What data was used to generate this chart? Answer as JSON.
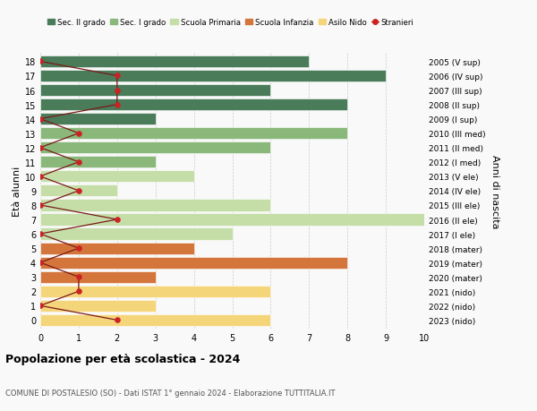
{
  "ages": [
    18,
    17,
    16,
    15,
    14,
    13,
    12,
    11,
    10,
    9,
    8,
    7,
    6,
    5,
    4,
    3,
    2,
    1,
    0
  ],
  "years": [
    "2005 (V sup)",
    "2006 (IV sup)",
    "2007 (III sup)",
    "2008 (II sup)",
    "2009 (I sup)",
    "2010 (III med)",
    "2011 (II med)",
    "2012 (I med)",
    "2013 (V ele)",
    "2014 (IV ele)",
    "2015 (III ele)",
    "2016 (II ele)",
    "2017 (I ele)",
    "2018 (mater)",
    "2019 (mater)",
    "2020 (mater)",
    "2021 (nido)",
    "2022 (nido)",
    "2023 (nido)"
  ],
  "bar_values": [
    7,
    9,
    6,
    8,
    3,
    8,
    6,
    3,
    4,
    2,
    6,
    10,
    5,
    4,
    8,
    3,
    6,
    3,
    6
  ],
  "bar_colors": [
    "#4a7c59",
    "#4a7c59",
    "#4a7c59",
    "#4a7c59",
    "#4a7c59",
    "#8ab87a",
    "#8ab87a",
    "#8ab87a",
    "#c5dea8",
    "#c5dea8",
    "#c5dea8",
    "#c5dea8",
    "#c5dea8",
    "#d4763b",
    "#d4763b",
    "#d4763b",
    "#f5d57a",
    "#f5d57a",
    "#f5d57a"
  ],
  "stranieri_values": [
    0,
    2,
    2,
    2,
    0,
    1,
    0,
    1,
    0,
    1,
    0,
    2,
    0,
    1,
    0,
    1,
    1,
    0,
    2
  ],
  "legend_labels": [
    "Sec. II grado",
    "Sec. I grado",
    "Scuola Primaria",
    "Scuola Infanzia",
    "Asilo Nido",
    "Stranieri"
  ],
  "legend_colors": [
    "#4a7c59",
    "#8ab87a",
    "#c5dea8",
    "#d4763b",
    "#f5d57a",
    "#8b1a1a"
  ],
  "ylabel_left": "Età alunni",
  "ylabel_right": "Anni di nascita",
  "xlim": [
    0,
    10
  ],
  "xticks": [
    0,
    1,
    2,
    3,
    4,
    5,
    6,
    7,
    8,
    9,
    10
  ],
  "title": "Popolazione per età scolastica - 2024",
  "subtitle": "COMUNE DI POSTALESIO (SO) - Dati ISTAT 1° gennaio 2024 - Elaborazione TUTTITALIA.IT",
  "bg_color": "#f9f9f9",
  "grid_color": "#cccccc",
  "bar_height": 0.82
}
